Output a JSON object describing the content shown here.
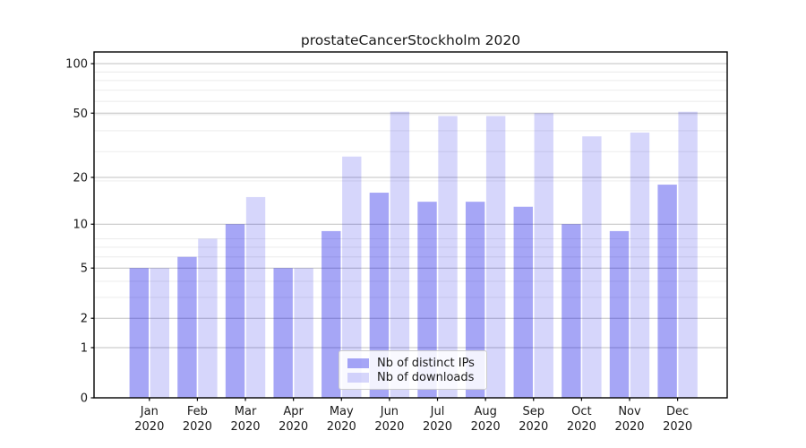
{
  "chart_data": {
    "type": "bar",
    "title": "prostateCancerStockholm 2020",
    "categories": [
      "Jan 2020",
      "Feb 2020",
      "Mar 2020",
      "Apr 2020",
      "May 2020",
      "Jun 2020",
      "Jul 2020",
      "Aug 2020",
      "Sep 2020",
      "Oct 2020",
      "Nov 2020",
      "Dec 2020"
    ],
    "series": [
      {
        "name": "Nb of distinct IPs",
        "color": "rgba(0,0,230,0.35)",
        "values": [
          5,
          6,
          10,
          5,
          9,
          16,
          14,
          14,
          13,
          10,
          9,
          18
        ]
      },
      {
        "name": "Nb of downloads",
        "color": "rgba(0,0,230,0.16)",
        "values": [
          5,
          8,
          15,
          5,
          27,
          51,
          48,
          48,
          50,
          36,
          38,
          51
        ]
      }
    ],
    "y_scale": "log1p",
    "y_ticks": [
      0,
      1,
      2,
      5,
      10,
      20,
      50,
      100
    ],
    "ylim": [
      0,
      117.7
    ],
    "grid": "on",
    "legend_position": "lower center",
    "colors": {
      "grid_major": "#c2c2c2",
      "grid_minor": "#eaeaea",
      "axis": "#000000",
      "text": "#1a1a1a"
    }
  }
}
